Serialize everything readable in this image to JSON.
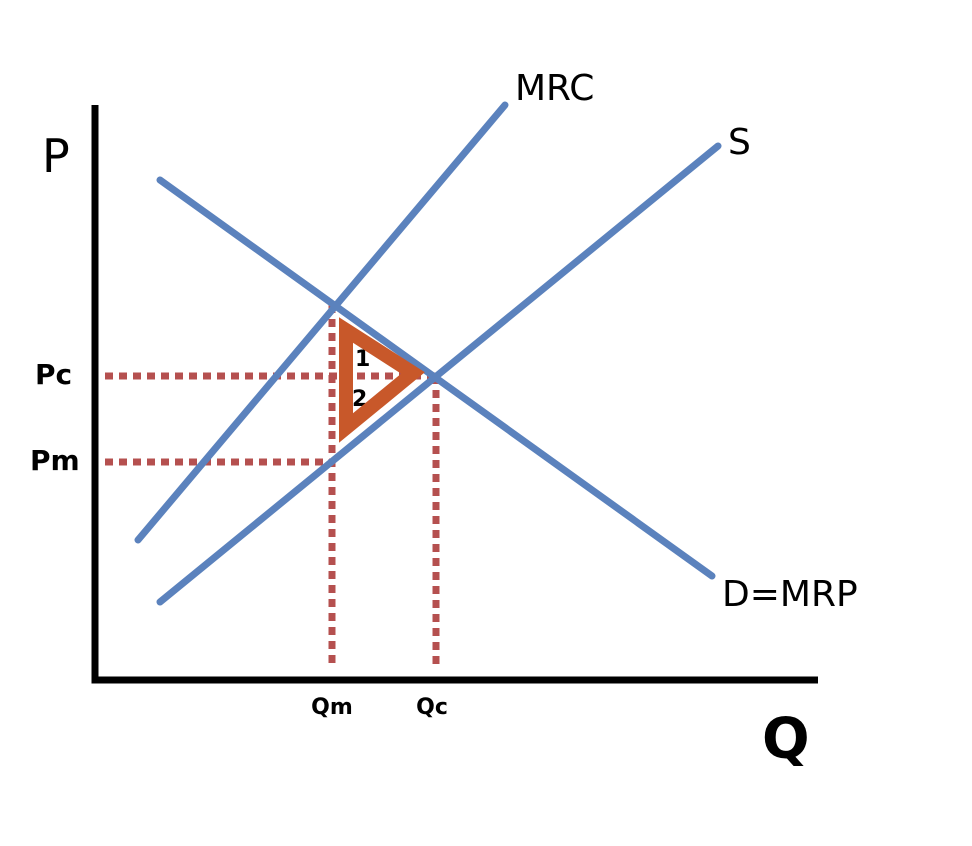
{
  "axes": {
    "y_label": "P",
    "x_label": "Q"
  },
  "curves": {
    "mrc": "MRC",
    "supply": "S",
    "demand": "D=MRP"
  },
  "prices": {
    "competitive": "Pc",
    "monopsony": "Pm"
  },
  "quantities": {
    "monopsony": "Qm",
    "competitive": "Qc"
  },
  "areas": {
    "upper": "1",
    "lower": "2"
  }
}
